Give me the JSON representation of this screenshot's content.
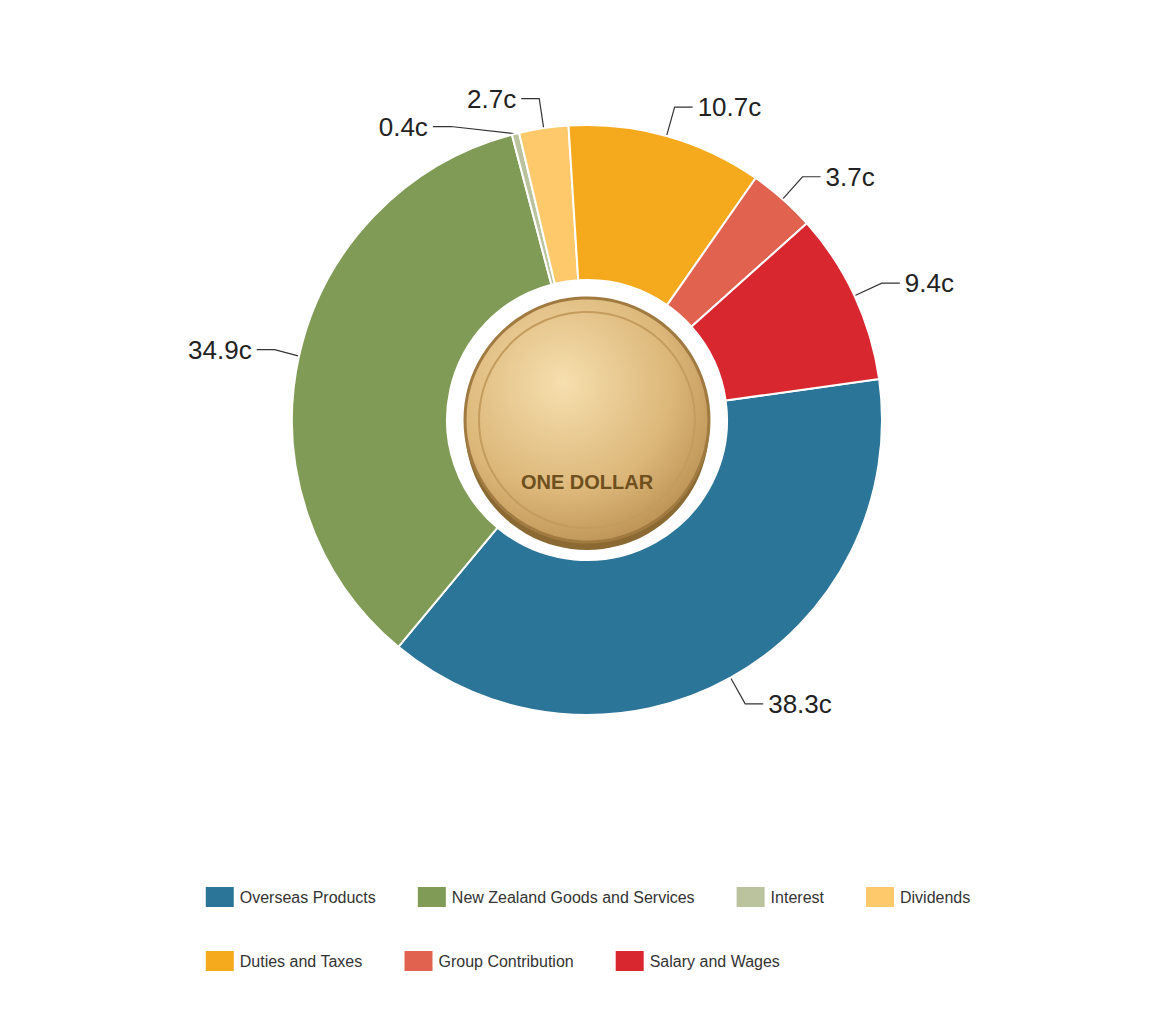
{
  "chart_data": {
    "type": "pie",
    "categories": [
      "Overseas Products",
      "New Zealand Goods and Services",
      "Interest",
      "Dividends",
      "Duties and Taxes",
      "Group Contribution",
      "Salary and Wages"
    ],
    "values": [
      38.3,
      34.9,
      0.4,
      2.7,
      10.7,
      3.7,
      9.4
    ],
    "value_labels": [
      "38.3c",
      "34.9c",
      "0.4c",
      "2.7c",
      "10.7c",
      "3.7c",
      "9.4c"
    ],
    "colors": [
      "#2b7598",
      "#809b56",
      "#bac29e",
      "#fdc96a",
      "#f5a91d",
      "#e0624f",
      "#d8272f"
    ],
    "data_labels": true,
    "legend": "bottom",
    "annotations": [
      "ONE DOLLAR"
    ]
  }
}
